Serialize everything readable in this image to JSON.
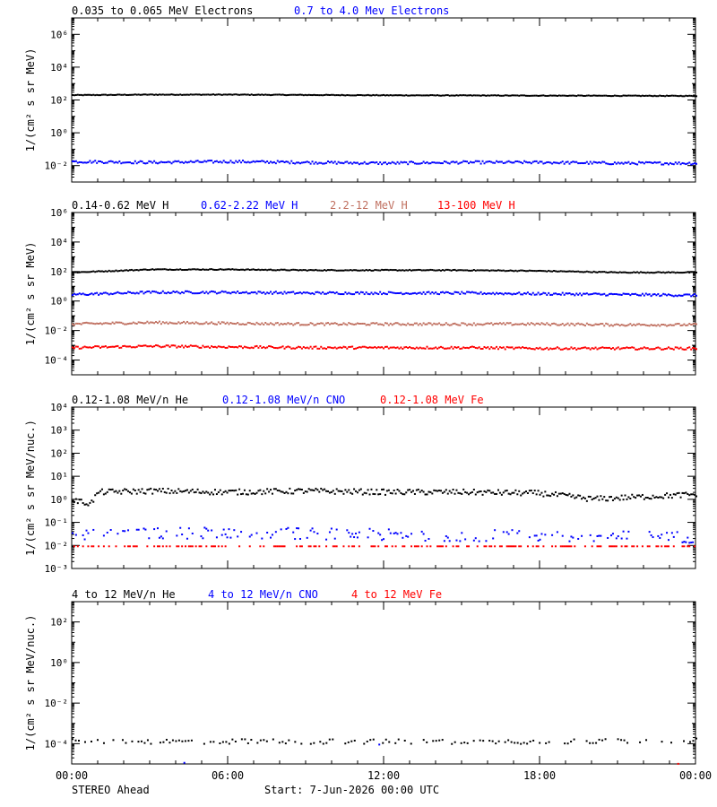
{
  "footer": {
    "left": "STEREO Ahead",
    "start": "Start:  7-Jun-2026 00:00 UTC"
  },
  "colors": {
    "black": "#000000",
    "blue": "#0000ff",
    "salmon": "#c07060",
    "red": "#ff0000"
  },
  "x_axis": {
    "ticks": [
      "00:00",
      "06:00",
      "12:00",
      "18:00",
      "00:00"
    ],
    "hours": [
      0,
      6,
      12,
      18,
      24
    ]
  },
  "chart_data": [
    {
      "type": "scatter",
      "ylabel": "1/(cm² s sr MeV)",
      "yscale": "log",
      "ylim_exp": [
        -3,
        7
      ],
      "ytick_exps": [
        -2,
        0,
        2,
        4,
        6
      ],
      "legend": [
        {
          "label": "0.035 to 0.065 MeV Electrons",
          "color": "#000000"
        },
        {
          "label": "0.7 to 4.0 Mev Electrons",
          "color": "#0000ff"
        }
      ],
      "series": [
        {
          "name": "0.035 to 0.065 MeV Electrons",
          "color": "#000000",
          "hours": [
            0,
            3,
            6,
            9,
            12,
            15,
            18,
            21,
            24
          ],
          "log10": [
            2.35,
            2.38,
            2.38,
            2.36,
            2.34,
            2.33,
            2.32,
            2.31,
            2.3
          ]
        },
        {
          "name": "0.7 to 4.0 Mev Electrons",
          "color": "#0000ff",
          "hours": [
            0,
            3,
            6,
            9,
            12,
            15,
            18,
            21,
            24
          ],
          "log10": [
            -1.7,
            -1.75,
            -1.7,
            -1.75,
            -1.8,
            -1.75,
            -1.75,
            -1.8,
            -1.8
          ]
        }
      ]
    },
    {
      "type": "scatter",
      "ylabel": "1/(cm² s sr MeV)",
      "yscale": "log",
      "ylim_exp": [
        -5,
        6
      ],
      "ytick_exps": [
        -4,
        -2,
        0,
        2,
        4,
        6
      ],
      "legend": [
        {
          "label": "0.14-0.62 MeV H",
          "color": "#000000"
        },
        {
          "label": "0.62-2.22 MeV H",
          "color": "#0000ff"
        },
        {
          "label": "2.2-12 MeV H",
          "color": "#c07060"
        },
        {
          "label": "13-100 MeV H",
          "color": "#ff0000"
        }
      ],
      "series": [
        {
          "name": "0.14-0.62 MeV H",
          "color": "#000000",
          "hours": [
            0,
            3,
            6,
            9,
            12,
            15,
            18,
            21,
            24
          ],
          "log10": [
            2.0,
            2.2,
            2.2,
            2.15,
            2.15,
            2.15,
            2.1,
            2.0,
            2.0
          ]
        },
        {
          "name": "0.62-2.22 MeV H",
          "color": "#0000ff",
          "hours": [
            0,
            3,
            6,
            9,
            12,
            15,
            18,
            21,
            24
          ],
          "log10": [
            0.5,
            0.65,
            0.65,
            0.6,
            0.6,
            0.6,
            0.55,
            0.5,
            0.45
          ]
        },
        {
          "name": "2.2-12 MeV H",
          "color": "#c07060",
          "hours": [
            0,
            3,
            6,
            9,
            12,
            15,
            18,
            21,
            24
          ],
          "log10": [
            -1.5,
            -1.4,
            -1.45,
            -1.5,
            -1.5,
            -1.5,
            -1.5,
            -1.55,
            -1.55
          ]
        },
        {
          "name": "13-100 MeV H",
          "color": "#ff0000",
          "hours": [
            0,
            3,
            6,
            9,
            12,
            15,
            18,
            21,
            24
          ],
          "log10": [
            -3.1,
            -3.0,
            -3.05,
            -3.1,
            -3.1,
            -3.1,
            -3.15,
            -3.15,
            -3.15
          ]
        }
      ]
    },
    {
      "type": "scatter",
      "ylabel": "1/(cm² s sr MeV/nuc.)",
      "yscale": "log",
      "ylim_exp": [
        -3,
        4
      ],
      "ytick_exps": [
        -3,
        -2,
        -1,
        0,
        1,
        2,
        3,
        4
      ],
      "legend": [
        {
          "label": "0.12-1.08 MeV/n He",
          "color": "#000000"
        },
        {
          "label": "0.12-1.08 MeV/n CNO",
          "color": "#0000ff"
        },
        {
          "label": "0.12-1.08 MeV Fe",
          "color": "#ff0000"
        }
      ],
      "series": [
        {
          "name": "0.12-1.08 MeV/n He",
          "color": "#000000",
          "hours": [
            0,
            0.7,
            1,
            3,
            6,
            9,
            12,
            15,
            18,
            20,
            24
          ],
          "log10": [
            0.0,
            -0.15,
            0.35,
            0.4,
            0.35,
            0.4,
            0.35,
            0.35,
            0.3,
            0.05,
            0.25
          ]
        },
        {
          "name": "0.12-1.08 MeV/n CNO",
          "color": "#0000ff",
          "hours": [
            0,
            6,
            12,
            18,
            24
          ],
          "log10": [
            -1.5,
            -1.4,
            -1.5,
            -1.55,
            -1.6
          ]
        },
        {
          "name": "0.12-1.08 MeV Fe",
          "color": "#ff0000",
          "hours": [
            0,
            6,
            12,
            18,
            24
          ],
          "log10": [
            -2.0,
            -2.0,
            -2.0,
            -2.0,
            -2.0
          ]
        }
      ]
    },
    {
      "type": "scatter",
      "ylabel": "1/(cm² s sr MeV/nuc.)",
      "yscale": "log",
      "ylim_exp": [
        -5,
        3
      ],
      "ytick_exps": [
        -4,
        -2,
        0,
        2
      ],
      "legend": [
        {
          "label": "4 to 12 MeV/n He",
          "color": "#000000"
        },
        {
          "label": "4 to 12 MeV/n CNO",
          "color": "#0000ff"
        },
        {
          "label": "4 to 12 MeV Fe",
          "color": "#ff0000"
        }
      ],
      "series": [
        {
          "name": "4 to 12 MeV/n He",
          "color": "#000000",
          "hours": [
            0,
            6,
            12,
            18,
            24
          ],
          "log10": [
            -3.85,
            -3.85,
            -3.85,
            -3.85,
            -3.8
          ]
        },
        {
          "name": "4 to 12 MeV/n CNO",
          "color": "#0000ff",
          "hours": [
            4.3,
            11.8
          ],
          "log10": [
            -4.9,
            -4.0
          ]
        },
        {
          "name": "4 to 12 MeV Fe",
          "color": "#ff0000",
          "hours": [
            23.3
          ],
          "log10": [
            -4.95
          ]
        }
      ]
    }
  ]
}
